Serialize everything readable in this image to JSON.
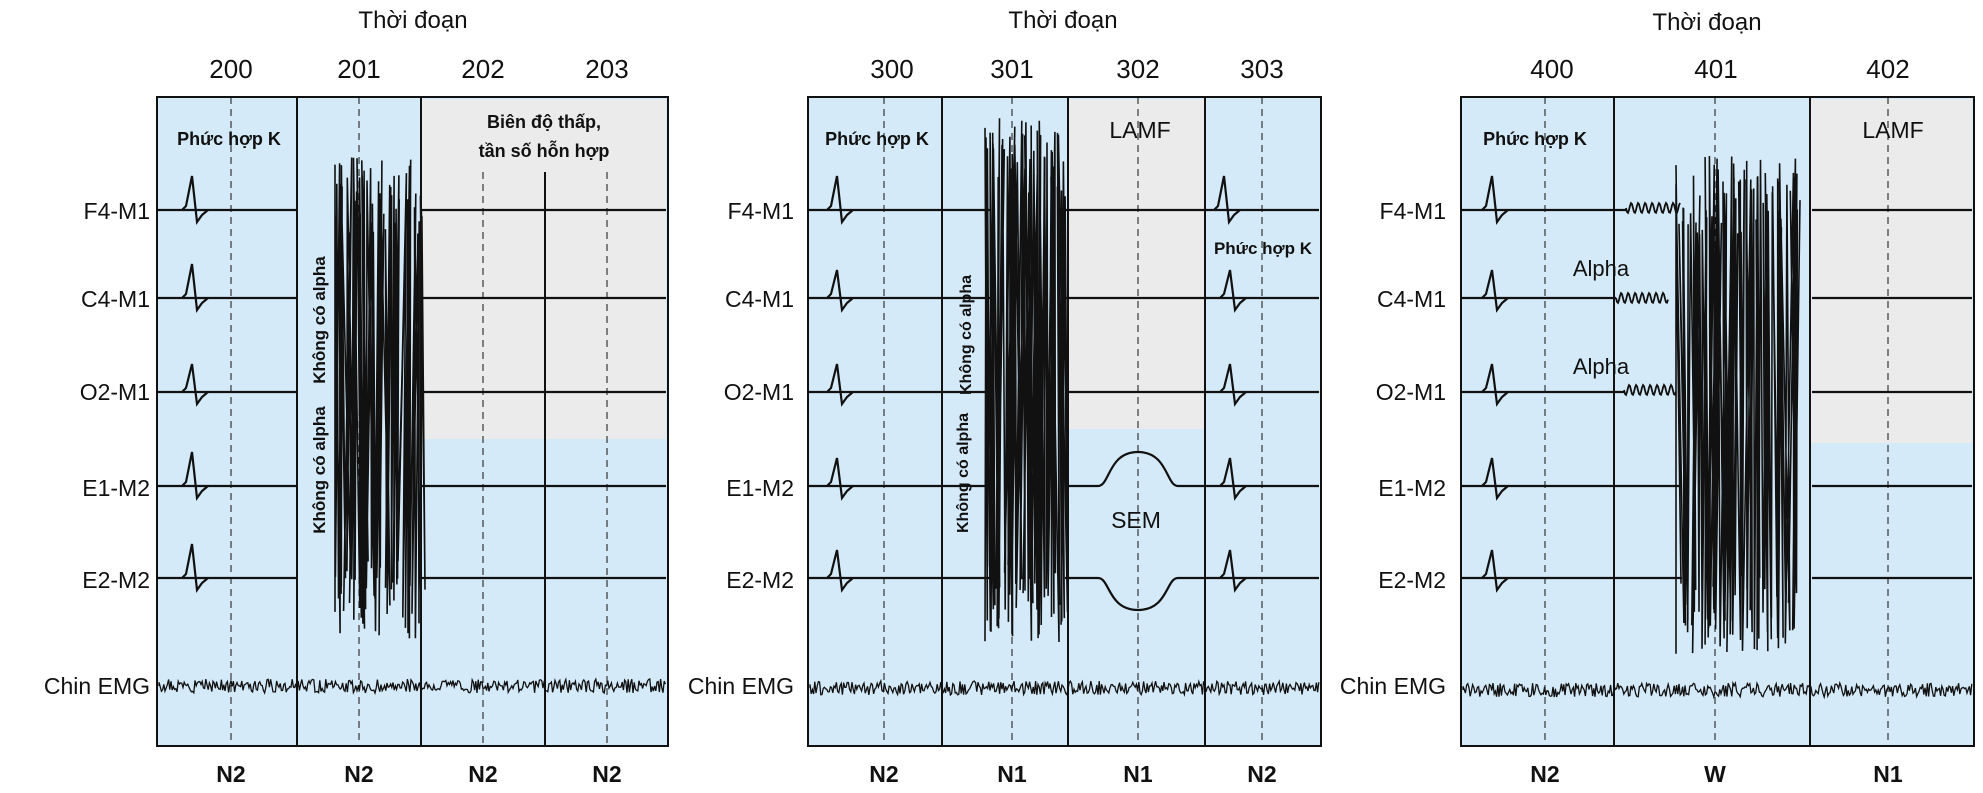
{
  "colors": {
    "background": "#ffffff",
    "epoch_fill": "#d5eaf8",
    "lowamp_fill": "#ebebeb",
    "trace": "#111111"
  },
  "common": {
    "timeline_label": "Thời đoạn",
    "channels": [
      "F4-M1",
      "C4-M1",
      "O2-M1",
      "E1-M2",
      "E2-M2",
      "Chin EMG"
    ]
  },
  "panels": [
    {
      "id": "a",
      "epochs": [
        {
          "number": "200",
          "stage": "N2"
        },
        {
          "number": "201",
          "stage": "N2"
        },
        {
          "number": "202",
          "stage": "N2"
        },
        {
          "number": "203",
          "stage": "N2"
        }
      ],
      "annotations": {
        "kcomplex": "Phức hợp K",
        "lowamp_line1": "Biên độ thấp,",
        "lowamp_line2": "tần số hỗn hợp",
        "noalpha_1": "Không có alpha",
        "noalpha_2": "Không có alpha"
      }
    },
    {
      "id": "b",
      "epochs": [
        {
          "number": "300",
          "stage": "N2"
        },
        {
          "number": "301",
          "stage": "N1"
        },
        {
          "number": "302",
          "stage": "N1"
        },
        {
          "number": "303",
          "stage": "N2"
        }
      ],
      "annotations": {
        "kcomplex": "Phức hợp K",
        "kcomplex_2": "Phức hợp K",
        "lamf": "LAMF",
        "sem": "SEM",
        "noalpha_1": "Không có alpha",
        "noalpha_2": "Không có alpha"
      }
    },
    {
      "id": "c",
      "epochs": [
        {
          "number": "400",
          "stage": "N2"
        },
        {
          "number": "401",
          "stage": "W"
        },
        {
          "number": "402",
          "stage": "N1"
        }
      ],
      "annotations": {
        "kcomplex": "Phức hợp K",
        "lamf": "LAMF",
        "alpha_1": "Alpha",
        "alpha_2": "Alpha"
      }
    }
  ]
}
